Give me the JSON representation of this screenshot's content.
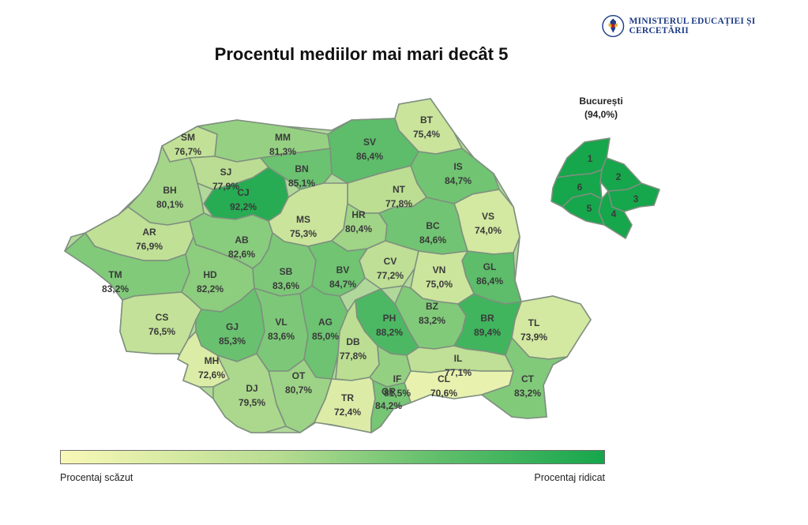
{
  "header": {
    "ministry_name": "MINISTERUL EDUCAȚIEI ȘI CERCETĂRII",
    "title": "Procentul mediilor mai mari decât 5"
  },
  "legend": {
    "low_label": "Procentaj scăzut",
    "high_label": "Procentaj ridicat",
    "color_low": "#f8f8b7",
    "color_high": "#16a64c"
  },
  "bucuresti": {
    "name": "București",
    "value_label": "(94,0%)",
    "value": 94.0,
    "sectors": [
      "1",
      "2",
      "3",
      "4",
      "5",
      "6"
    ]
  },
  "counties": [
    {
      "code": "SM",
      "value": 76.7,
      "label": "76,7%"
    },
    {
      "code": "MM",
      "value": 81.3,
      "label": "81,3%"
    },
    {
      "code": "SV",
      "value": 86.4,
      "label": "86,4%"
    },
    {
      "code": "BT",
      "value": 75.4,
      "label": "75,4%"
    },
    {
      "code": "SJ",
      "value": 77.9,
      "label": "77,9%"
    },
    {
      "code": "BN",
      "value": 85.1,
      "label": "85,1%"
    },
    {
      "code": "IS",
      "value": 84.7,
      "label": "84,7%"
    },
    {
      "code": "BH",
      "value": 80.1,
      "label": "80,1%"
    },
    {
      "code": "CJ",
      "value": 92.2,
      "label": "92,2%"
    },
    {
      "code": "NT",
      "value": 77.8,
      "label": "77,8%"
    },
    {
      "code": "VS",
      "value": 74.0,
      "label": "74,0%"
    },
    {
      "code": "MS",
      "value": 75.3,
      "label": "75,3%"
    },
    {
      "code": "HR",
      "value": 80.4,
      "label": "80,4%"
    },
    {
      "code": "BC",
      "value": 84.6,
      "label": "84,6%"
    },
    {
      "code": "AR",
      "value": 76.9,
      "label": "76,9%"
    },
    {
      "code": "AB",
      "value": 82.6,
      "label": "82,6%"
    },
    {
      "code": "CV",
      "value": 77.2,
      "label": "77,2%"
    },
    {
      "code": "GL",
      "value": 86.4,
      "label": "86,4%"
    },
    {
      "code": "VN",
      "value": 75.0,
      "label": "75,0%"
    },
    {
      "code": "TM",
      "value": 83.2,
      "label": "83,2%"
    },
    {
      "code": "HD",
      "value": 82.2,
      "label": "82,2%"
    },
    {
      "code": "SB",
      "value": 83.6,
      "label": "83,6%"
    },
    {
      "code": "BV",
      "value": 84.7,
      "label": "84,7%"
    },
    {
      "code": "CS",
      "value": 76.5,
      "label": "76,5%"
    },
    {
      "code": "BZ",
      "value": 83.2,
      "label": "83,2%"
    },
    {
      "code": "BR",
      "value": 89.4,
      "label": "89,4%"
    },
    {
      "code": "TL",
      "value": 73.9,
      "label": "73,9%"
    },
    {
      "code": "GJ",
      "value": 85.3,
      "label": "85,3%"
    },
    {
      "code": "VL",
      "value": 83.6,
      "label": "83,6%"
    },
    {
      "code": "AG",
      "value": 85.0,
      "label": "85,0%"
    },
    {
      "code": "PH",
      "value": 88.2,
      "label": "88,2%"
    },
    {
      "code": "DB",
      "value": 77.8,
      "label": "77,8%"
    },
    {
      "code": "MH",
      "value": 72.6,
      "label": "72,6%"
    },
    {
      "code": "IF",
      "value": 81.5,
      "label": "81,5%"
    },
    {
      "code": "IL",
      "value": 77.1,
      "label": "77,1%"
    },
    {
      "code": "OT",
      "value": 80.7,
      "label": "80,7%"
    },
    {
      "code": "CL",
      "value": 70.6,
      "label": "70,6%"
    },
    {
      "code": "CT",
      "value": 83.2,
      "label": "83,2%"
    },
    {
      "code": "DJ",
      "value": 79.5,
      "label": "79,5%"
    },
    {
      "code": "TR",
      "value": 72.4,
      "label": "72,4%"
    },
    {
      "code": "GR",
      "value": 84.2,
      "label": "84,2%"
    }
  ]
}
